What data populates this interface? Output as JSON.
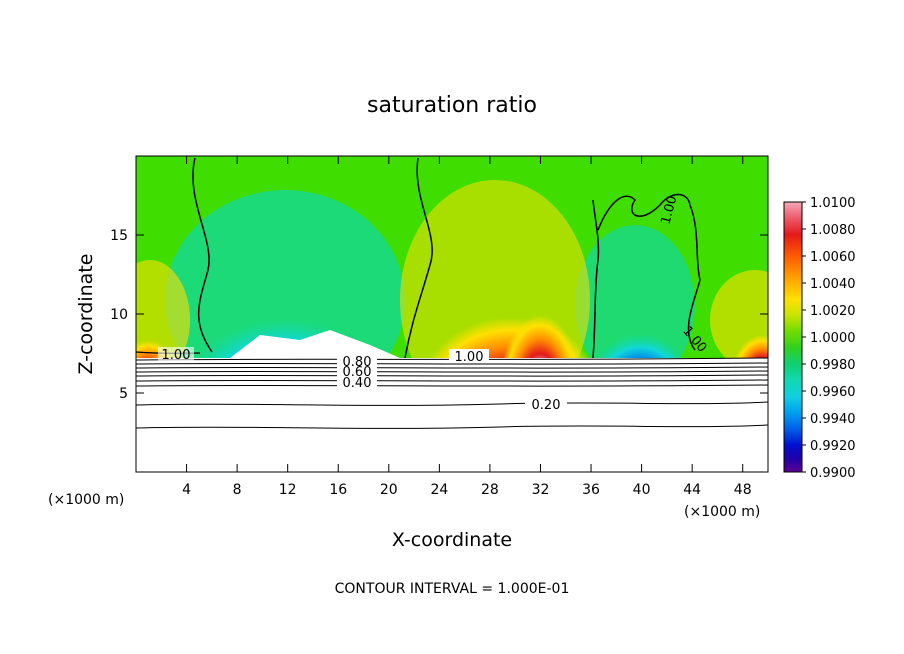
{
  "chart_data": {
    "type": "heatmap",
    "title": "saturation ratio",
    "xlabel": "X-coordinate",
    "ylabel": "Z-coordinate",
    "x_unit_label": "(×1000 m)",
    "x_unit_label_right": "(×1000 m)",
    "xlim": [
      0,
      50
    ],
    "ylim": [
      0,
      20
    ],
    "x_ticks": [
      4,
      8,
      12,
      16,
      20,
      24,
      28,
      32,
      36,
      40,
      44,
      48
    ],
    "y_ticks": [
      5,
      10,
      15
    ],
    "colorbar": {
      "ticks": [
        "1.0100",
        "1.0080",
        "1.0060",
        "1.0040",
        "1.0020",
        "1.0000",
        "0.9980",
        "0.9960",
        "0.9940",
        "0.9920",
        "0.9900"
      ],
      "colors": [
        "#f5a9b8",
        "#ee6677",
        "#e31a1c",
        "#ff4500",
        "#ff8c00",
        "#ffb300",
        "#ffd700",
        "#f0f000",
        "#b8e000",
        "#7ee000",
        "#40dd00",
        "#20d020",
        "#10d060",
        "#10d8a0",
        "#10d8d8",
        "#00b4f0",
        "#0078f0",
        "#0040e0",
        "#0000c8",
        "#2000a0",
        "#5a0090"
      ]
    },
    "contour_labels": [
      "1.00",
      "1.00",
      "1.00",
      "1.00",
      "0.80",
      "0.60",
      "0.40",
      "0.20"
    ],
    "footnote": "CONTOUR INTERVAL = 1.000E-01"
  }
}
